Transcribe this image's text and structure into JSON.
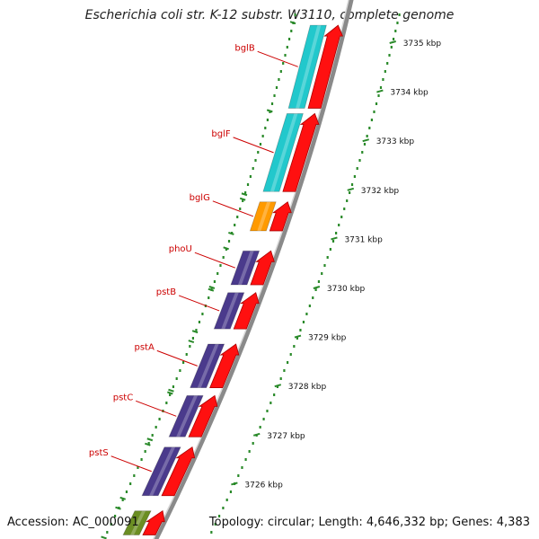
{
  "title": "Escherichia coli str. K-12 substr. W3110, complete genome",
  "footer": {
    "accession": "Accession: AC_000091",
    "summary": "Topology: circular; Length: 4,646,332 bp; Genes: 4,383"
  },
  "scale": {
    "unit": "kbp",
    "ticks": [
      {
        "kbp": 3735,
        "label": "3735 kbp"
      },
      {
        "kbp": 3734,
        "label": "3734 kbp"
      },
      {
        "kbp": 3733,
        "label": "3733 kbp"
      },
      {
        "kbp": 3732,
        "label": "3732 kbp"
      },
      {
        "kbp": 3731,
        "label": "3731 kbp"
      },
      {
        "kbp": 3730,
        "label": "3730 kbp"
      },
      {
        "kbp": 3729,
        "label": "3729 kbp"
      },
      {
        "kbp": 3728,
        "label": "3728 kbp"
      },
      {
        "kbp": 3727,
        "label": "3727 kbp"
      },
      {
        "kbp": 3726,
        "label": "3726 kbp"
      }
    ]
  },
  "genes": [
    {
      "name": "bglB",
      "start_kbp": 3733.6,
      "end_kbp": 3735.4,
      "color": "#22c8cc"
    },
    {
      "name": "bglF",
      "start_kbp": 3731.9,
      "end_kbp": 3733.6,
      "color": "#22c8cc"
    },
    {
      "name": "bglG",
      "start_kbp": 3731.1,
      "end_kbp": 3731.8,
      "color": "#ff9a00"
    },
    {
      "name": "phoU",
      "start_kbp": 3730.0,
      "end_kbp": 3730.8,
      "color": "#4a3a8c"
    },
    {
      "name": "pstB",
      "start_kbp": 3729.1,
      "end_kbp": 3729.95,
      "color": "#4a3a8c"
    },
    {
      "name": "pstA",
      "start_kbp": 3727.9,
      "end_kbp": 3728.9,
      "color": "#4a3a8c"
    },
    {
      "name": "pstC",
      "start_kbp": 3726.9,
      "end_kbp": 3727.85,
      "color": "#4a3a8c"
    },
    {
      "name": "pstS",
      "start_kbp": 3725.7,
      "end_kbp": 3726.8,
      "color": "#4a3a8c"
    },
    {
      "name": "",
      "start_kbp": 3724.9,
      "end_kbp": 3725.5,
      "color": "#6b8e23"
    }
  ],
  "colors": {
    "cds": "#ff1010",
    "backbone": "#8a8a8a",
    "scale_dots": "#2a8a2a",
    "gene_label": "#cc0000"
  }
}
